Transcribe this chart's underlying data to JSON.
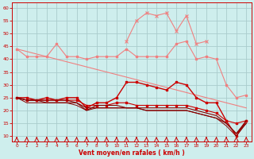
{
  "x": [
    0,
    1,
    2,
    3,
    4,
    5,
    6,
    7,
    8,
    9,
    10,
    11,
    12,
    13,
    14,
    15,
    16,
    17,
    18,
    19,
    20,
    21,
    22,
    23
  ],
  "line_pink_wavy": [
    44,
    41,
    41,
    41,
    46,
    41,
    41,
    40,
    41,
    41,
    41,
    44,
    41,
    41,
    41,
    41,
    46,
    47,
    40,
    41,
    40,
    30,
    25,
    26
  ],
  "line_pink_diag": [
    44,
    43,
    42,
    41,
    40,
    39,
    38,
    37,
    36,
    35,
    34,
    33,
    32,
    31,
    30,
    29,
    28,
    27,
    26,
    25,
    24,
    23,
    22,
    21
  ],
  "line_pink_rafale": [
    null,
    null,
    null,
    null,
    null,
    null,
    null,
    null,
    null,
    null,
    null,
    47,
    55,
    58,
    57,
    58,
    51,
    57,
    46,
    47,
    null,
    null,
    null,
    null
  ],
  "line_red_wind": [
    25,
    25,
    24,
    25,
    24,
    25,
    25,
    21,
    23,
    23,
    25,
    31,
    31,
    30,
    29,
    28,
    31,
    30,
    25,
    23,
    23,
    16,
    10,
    16
  ],
  "line_red1": [
    25,
    24,
    24,
    24,
    24,
    24,
    24,
    22,
    22,
    22,
    23,
    23,
    22,
    22,
    22,
    22,
    22,
    22,
    21,
    20,
    19,
    16,
    15,
    16
  ],
  "line_dark1": [
    25,
    24,
    24,
    24,
    24,
    24,
    23,
    20,
    22,
    22,
    22,
    21,
    21,
    21,
    21,
    21,
    21,
    21,
    20,
    19,
    18,
    15,
    11,
    16
  ],
  "line_dark2": [
    25,
    24,
    24,
    23,
    23,
    23,
    23,
    21,
    21,
    21,
    21,
    21,
    21,
    20,
    20,
    20,
    20,
    20,
    19,
    18,
    17,
    15,
    11,
    15
  ],
  "line_dark3": [
    25,
    23,
    23,
    23,
    23,
    23,
    22,
    20,
    21,
    21,
    21,
    21,
    21,
    20,
    20,
    20,
    20,
    20,
    19,
    18,
    17,
    14,
    10,
    15
  ],
  "bg_color": "#ceeeed",
  "grid_color": "#aacccc",
  "pink": "#f08080",
  "red": "#cc0000",
  "darkred": "#880000",
  "xlabel": "Vent moyen/en rafales ( km/h )",
  "ylim": [
    8,
    62
  ],
  "xlim": [
    -0.5,
    23.5
  ],
  "yticks": [
    10,
    15,
    20,
    25,
    30,
    35,
    40,
    45,
    50,
    55,
    60
  ]
}
